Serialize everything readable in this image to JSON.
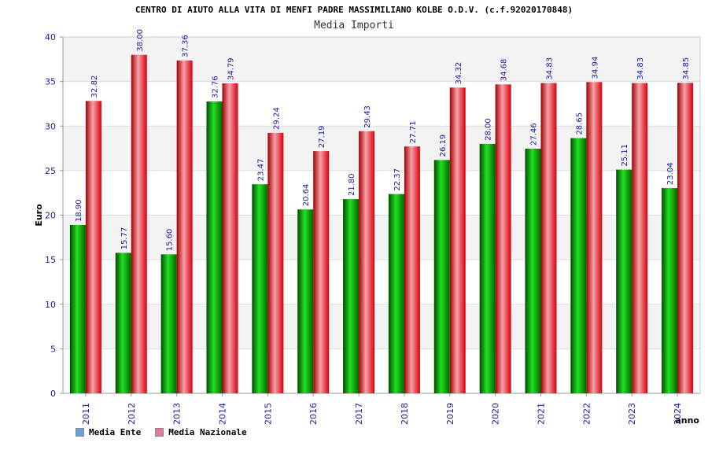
{
  "chart_data": {
    "type": "bar",
    "title": "CENTRO DI AIUTO ALLA VITA DI MENFI PADRE MASSIMILIANO KOLBE O.D.V. (c.f.92020170848)",
    "subtitle": "Media Importi",
    "ylabel": "Euro",
    "xlabel": "anno",
    "ylim": [
      0,
      40
    ],
    "yticks": [
      0,
      5,
      10,
      15,
      20,
      25,
      30,
      35,
      40
    ],
    "grid": true,
    "legend_position": "bottom-left",
    "categories": [
      "2011",
      "2012",
      "2013",
      "2014",
      "2015",
      "2016",
      "2017",
      "2018",
      "2019",
      "2020",
      "2021",
      "2022",
      "2023",
      "2024"
    ],
    "series": [
      {
        "name": "Media Ente",
        "bar_color": "#00b400",
        "legend_color": "#6aa0e0",
        "values": [
          18.9,
          15.77,
          15.6,
          32.76,
          23.47,
          20.64,
          21.8,
          22.37,
          26.19,
          28.0,
          27.46,
          28.65,
          25.11,
          23.04
        ],
        "labels": [
          "18.90",
          "15.77",
          "15.60",
          "32.76",
          "23.47",
          "20.64",
          "21.80",
          "22.37",
          "26.19",
          "28.00",
          "27.46",
          "28.65",
          "25.11",
          "23.04"
        ]
      },
      {
        "name": "Media Nazionale",
        "bar_color": "#e8101c",
        "legend_color": "#e07aa0",
        "values": [
          32.82,
          38.0,
          37.36,
          34.79,
          29.24,
          27.19,
          29.43,
          27.71,
          34.32,
          34.68,
          34.83,
          34.94,
          34.83,
          34.85
        ],
        "labels": [
          "32.82",
          "38.00",
          "37.36",
          "34.79",
          "29.24",
          "27.19",
          "29.43",
          "27.71",
          "34.32",
          "34.68",
          "34.83",
          "34.94",
          "34.83",
          "34.85"
        ]
      }
    ]
  }
}
